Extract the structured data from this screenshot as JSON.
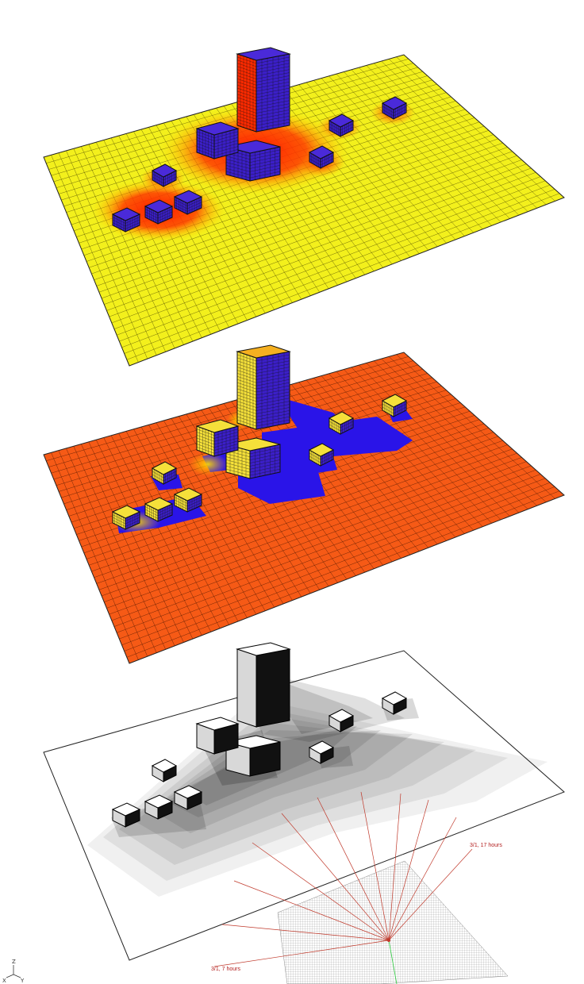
{
  "panels": [
    {
      "id": "panel-1",
      "ground_color": "#f3f01c",
      "grid_color": "#4a4500",
      "glow_color": "#ff1a00",
      "block_top": "#4a2ad9",
      "block_side": "#3b1fc8",
      "tower_front": "#ff2a00"
    },
    {
      "id": "panel-2",
      "ground_color": "#f65a16",
      "grid_color": "#4a1500",
      "shadow_color": "#2a14e8",
      "block_top": "#f5e03a",
      "block_side": "#3b1fc8"
    },
    {
      "id": "panel-3",
      "ground_color": "#ffffff",
      "shadow_color": "#000000",
      "block_top": "#ffffff",
      "block_side": "#111111"
    }
  ],
  "sun_labels": {
    "first": "3/1, 7 hours",
    "last": "3/1, 17 hours"
  },
  "axis": {
    "z": "Z",
    "x": "X",
    "y": "Y"
  },
  "colors": {
    "sun_ray": "#c0392b",
    "north_line": "#2ecc40"
  }
}
